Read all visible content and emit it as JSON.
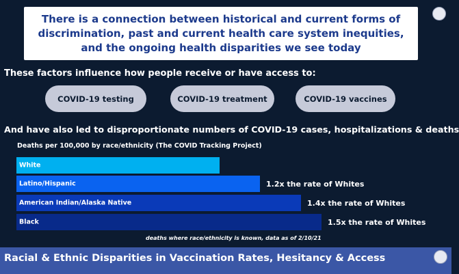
{
  "headline": {
    "text": "There is a connection between historical and current forms of discrimination, past and current health care system inequities, and the ongoing health disparities we see today"
  },
  "factors": {
    "intro": "These factors influence how people receive or have access to:",
    "buttons": [
      "COVID-19 testing",
      "COVID-19 treatment",
      "COVID-19 vaccines"
    ]
  },
  "consequence": {
    "text": "And have also led to disproportionate numbers of COVID-19 cases, hospitalizations & deaths"
  },
  "chart_data": {
    "type": "bar",
    "orientation": "horizontal",
    "title": "Deaths per 100,000 by race/ethnicity (The COVID Tracking Project)",
    "categories": [
      "White",
      "Latino/Hispanic",
      "American Indian/Alaska Native",
      "Black"
    ],
    "values": [
      1.0,
      1.2,
      1.4,
      1.5
    ],
    "value_unit": "relative rate vs. Whites",
    "annotations": [
      "",
      "1.2x the rate of Whites",
      "1.4x the rate of Whites",
      "1.5x the rate of Whites"
    ],
    "colors": [
      "#00b0f0",
      "#0a63f0",
      "#0a3ab8",
      "#082a8a"
    ],
    "note": "deaths where race/ethnicity is known, data as of 2/10/21",
    "xlabel": "",
    "ylabel": "",
    "grid": false
  },
  "footer": {
    "text": "Racial & Ethnic Disparities in Vaccination Rates, Hesitancy & Access"
  },
  "colors": {
    "background": "#0c1b30",
    "headline_text": "#1c3a8c",
    "pill": "#c6cad9",
    "footer_bar": "#3b57a6"
  },
  "icons": {
    "nav_dot": "circle"
  }
}
